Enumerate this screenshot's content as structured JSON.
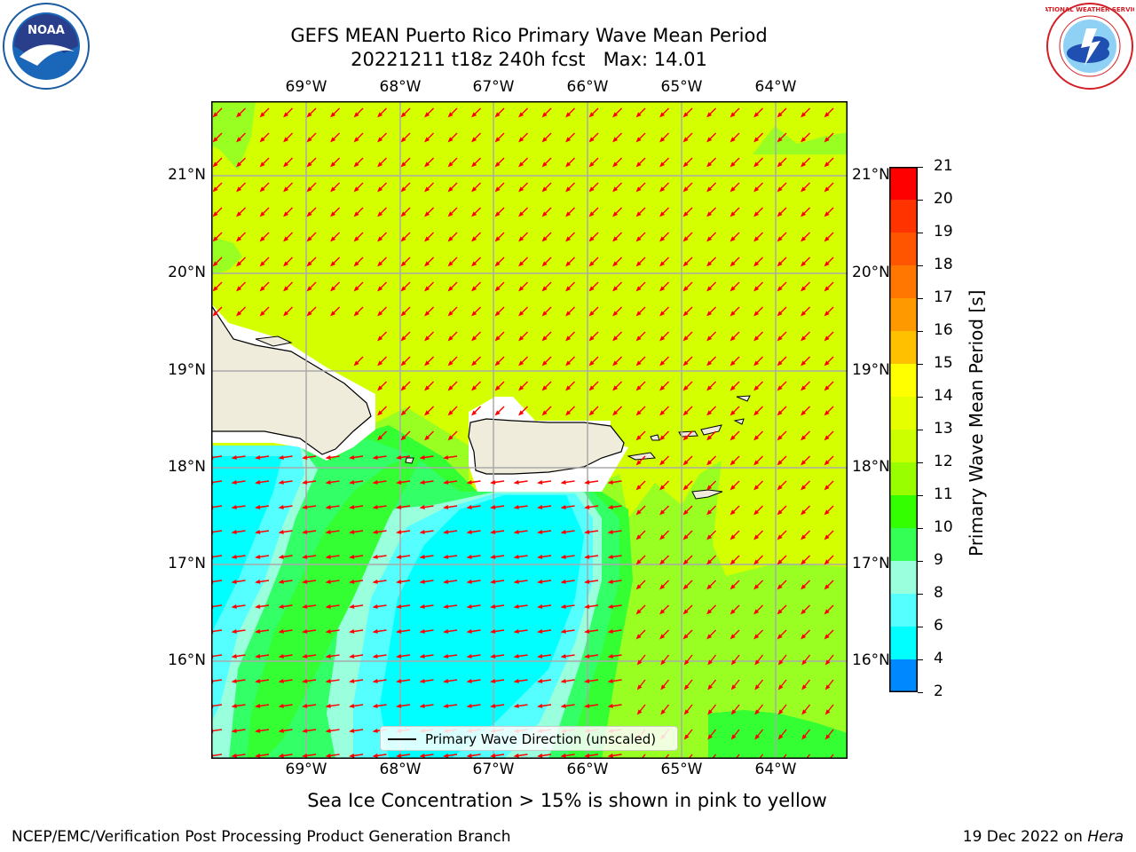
{
  "header": {
    "title_line1": "GEFS MEAN Puerto Rico Primary Wave Mean Period",
    "title_line2": "20221211 t18z 240h fcst   Max: 14.01"
  },
  "logos": {
    "left": {
      "text": "NOAA",
      "colors": {
        "outer": "#1a5aa0",
        "inner": "#2a3f8c"
      }
    },
    "right": {
      "text": "NATIONAL WEATHER SERVICE",
      "colors": {
        "ring": "#d21f26",
        "inner": "#1f6fcf"
      }
    }
  },
  "map": {
    "lon_labels_top": [
      "69°W",
      "68°W",
      "67°W",
      "66°W",
      "65°W",
      "64°W"
    ],
    "lon_labels_bottom": [
      "69°W",
      "68°W",
      "67°W",
      "66°W",
      "65°W",
      "64°W"
    ],
    "lat_labels_left": [
      "21°N",
      "20°N",
      "19°N",
      "18°N",
      "17°N",
      "16°N"
    ],
    "lat_labels_right": [
      "21°N",
      "20°N",
      "19°N",
      "18°N",
      "17°N",
      "16°N"
    ],
    "legend_text": "Primary Wave Direction (unscaled)",
    "arrow_color": "#ff0000",
    "land_color": "#efecdc"
  },
  "colorbar": {
    "title": "Primary Wave Mean Period [s]",
    "levels": [
      "21",
      "20",
      "19",
      "18",
      "17",
      "16",
      "15",
      "14",
      "13",
      "12",
      "11",
      "10",
      "9",
      "8",
      "6",
      "4",
      "2"
    ],
    "colors": [
      "#ff0000",
      "#ff3300",
      "#ff5500",
      "#ff7700",
      "#ff9900",
      "#ffc000",
      "#ffff00",
      "#e6ff00",
      "#ccff00",
      "#99ff00",
      "#33ff00",
      "#33ff55",
      "#99ffdd",
      "#55ffff",
      "#00ffff",
      "#0088ff",
      "#0000ff"
    ]
  },
  "footnote": "Sea Ice Concentration > 15% is shown in pink to yellow",
  "footer": {
    "left": "NCEP/EMC/Verification Post Processing Product Generation Branch",
    "right_prefix": "19 Dec 2022 on ",
    "right_host": "Hera"
  }
}
